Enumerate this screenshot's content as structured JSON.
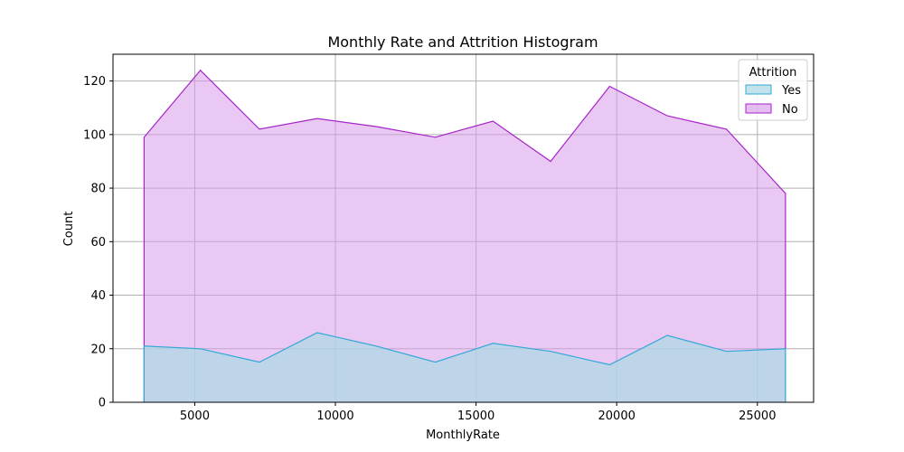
{
  "chart_data": {
    "type": "area",
    "title": "Monthly Rate and Attrition Histogram",
    "xlabel": "MonthlyRate",
    "ylabel": "Count",
    "xlim": [
      2094,
      26999
    ],
    "ylim": [
      0,
      130
    ],
    "x_ticks": [
      5000,
      10000,
      15000,
      20000,
      25000
    ],
    "y_ticks": [
      0,
      20,
      40,
      60,
      80,
      100,
      120
    ],
    "grid": true,
    "legend": {
      "title": "Attrition",
      "placement": "top-right"
    },
    "x": [
      3200,
      5200,
      7300,
      9350,
      11450,
      13550,
      15600,
      17650,
      19750,
      21800,
      23900,
      26000
    ],
    "series": [
      {
        "name": "Yes",
        "color": "#31a9d6",
        "fill": "#add8e6",
        "values": [
          21,
          20,
          15,
          26,
          21,
          15,
          22,
          19,
          14,
          25,
          19,
          20
        ]
      },
      {
        "name": "No",
        "color": "#a624c9",
        "fill": "#d79ae9",
        "values": [
          99,
          124,
          102,
          106,
          103,
          99,
          105,
          90,
          118,
          107,
          102,
          78
        ]
      }
    ]
  }
}
